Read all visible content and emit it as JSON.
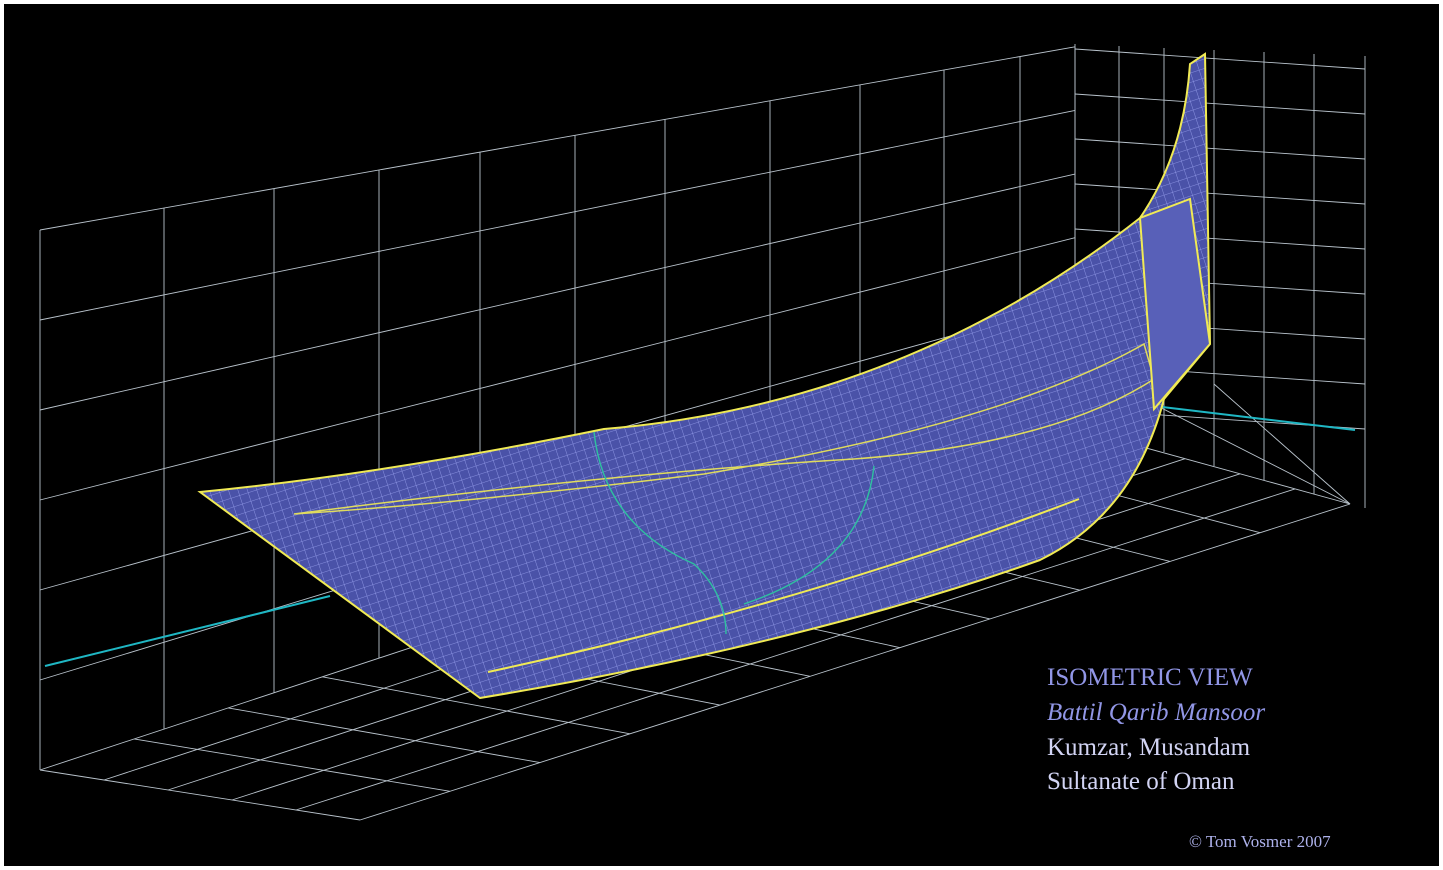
{
  "caption": {
    "title": "ISOMETRIC VIEW",
    "vessel": "Battil Qarib Mansoor",
    "place": "Kumzar, Musandam",
    "country": "Sultanate of Oman"
  },
  "credit": "© Tom Vosmer 2007"
}
